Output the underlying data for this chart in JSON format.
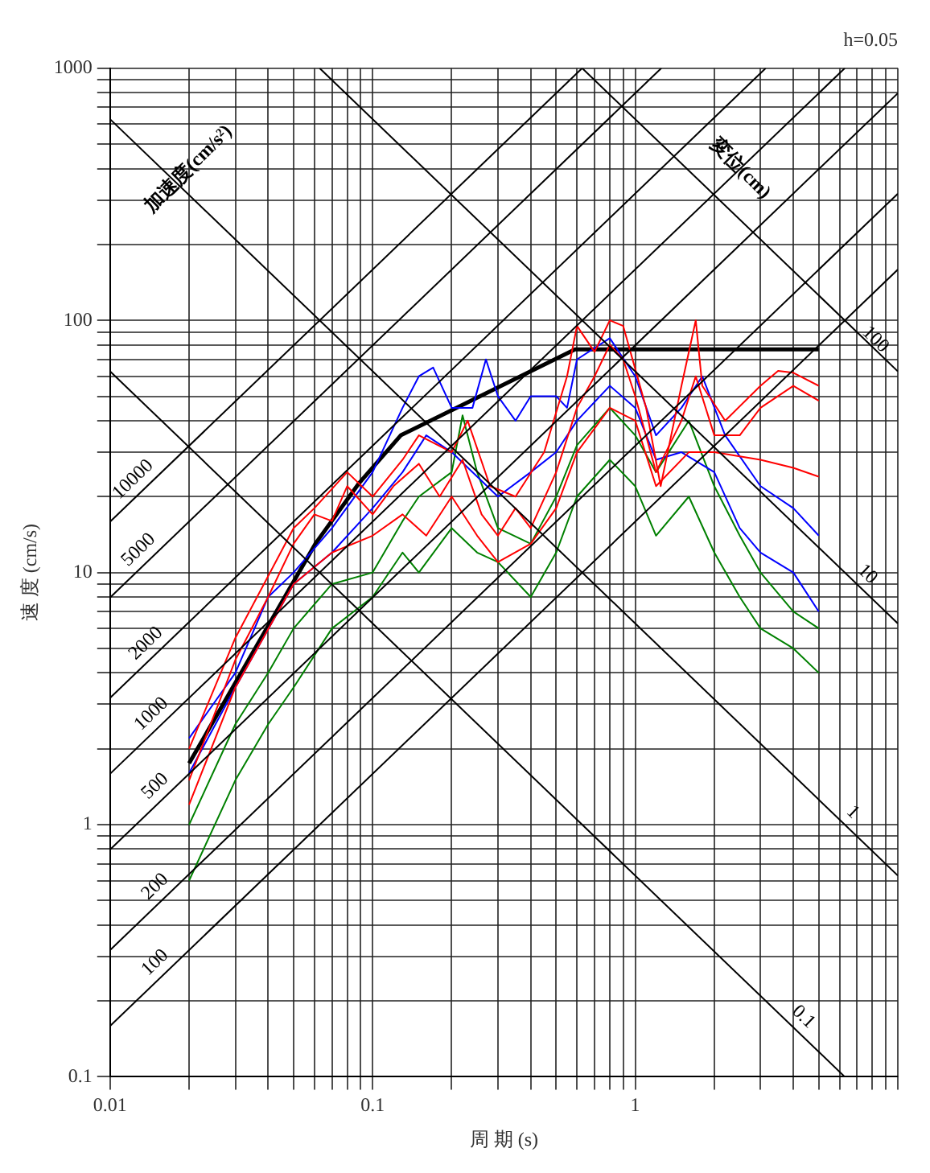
{
  "chart_data": {
    "type": "line",
    "title": "h=0.05",
    "xlabel": "周 期 (s)",
    "ylabel": "速 度 (cm/s)",
    "log": "xy",
    "grid": true,
    "legend": false,
    "marker": "none",
    "xlim": [
      0.01,
      10
    ],
    "ylim": [
      0.1,
      1000
    ],
    "xticks": [
      0.01,
      {
        "value": 0.02,
        "label": null
      },
      {
        "value": 0.03,
        "label": null
      },
      {
        "value": 0.04,
        "label": null
      },
      {
        "value": 0.05,
        "label": null
      },
      {
        "value": 0.06,
        "label": null
      },
      {
        "value": 0.07,
        "label": null
      },
      {
        "value": 0.08,
        "label": null
      },
      {
        "value": 0.09,
        "label": null
      },
      0.1,
      {
        "value": 0.2,
        "label": null
      },
      {
        "value": 0.3,
        "label": null
      },
      {
        "value": 0.4,
        "label": null
      },
      {
        "value": 0.5,
        "label": null
      },
      {
        "value": 0.6,
        "label": null
      },
      {
        "value": 0.7,
        "label": null
      },
      {
        "value": 0.8,
        "label": null
      },
      {
        "value": 0.9,
        "label": null
      },
      1,
      {
        "value": 2,
        "label": null
      },
      {
        "value": 3,
        "label": null
      },
      {
        "value": 4,
        "label": null
      },
      {
        "value": 5,
        "label": null
      },
      {
        "value": 6,
        "label": null
      },
      {
        "value": 7,
        "label": null
      },
      {
        "value": 8,
        "label": null
      },
      {
        "value": 9,
        "label": null
      },
      {
        "value": 10,
        "label": null
      }
    ],
    "yticks": [
      0.1,
      {
        "value": 0.2,
        "label": null
      },
      {
        "value": 0.3,
        "label": null
      },
      {
        "value": 0.4,
        "label": null
      },
      {
        "value": 0.5,
        "label": null
      },
      {
        "value": 0.6,
        "label": null
      },
      {
        "value": 0.7,
        "label": null
      },
      {
        "value": 0.8,
        "label": null
      },
      {
        "value": 0.9,
        "label": null
      },
      1,
      {
        "value": 2,
        "label": null
      },
      {
        "value": 3,
        "label": null
      },
      {
        "value": 4,
        "label": null
      },
      {
        "value": 5,
        "label": null
      },
      {
        "value": 6,
        "label": null
      },
      {
        "value": 7,
        "label": null
      },
      {
        "value": 8,
        "label": null
      },
      {
        "value": 9,
        "label": null
      },
      10,
      {
        "value": 20,
        "label": null
      },
      {
        "value": 30,
        "label": null
      },
      {
        "value": 40,
        "label": null
      },
      {
        "value": 50,
        "label": null
      },
      {
        "value": 60,
        "label": null
      },
      {
        "value": 70,
        "label": null
      },
      {
        "value": 80,
        "label": null
      },
      {
        "value": 90,
        "label": null
      },
      100,
      {
        "value": 200,
        "label": null
      },
      {
        "value": 300,
        "label": null
      },
      {
        "value": 400,
        "label": null
      },
      {
        "value": 500,
        "label": null
      },
      {
        "value": 600,
        "label": null
      },
      {
        "value": 700,
        "label": null
      },
      {
        "value": 800,
        "label": null
      },
      {
        "value": 900,
        "label": null
      },
      1000
    ],
    "annotations": [
      "加速度(cm/s²)",
      "変位(cm)"
    ],
    "series": [
      {
        "name": "100",
        "color": "#000000",
        "x": [
          0.01,
          10
        ],
        "values": [
          0.159,
          159
        ]
      },
      {
        "name": "200",
        "color": "#000000",
        "x": [
          0.01,
          10
        ],
        "values": [
          0.318,
          318
        ]
      },
      {
        "name": "500",
        "color": "#000000",
        "x": [
          0.01,
          10
        ],
        "values": [
          0.796,
          796
        ]
      },
      {
        "name": "1000",
        "color": "#000000",
        "x": [
          0.01,
          6.28
        ],
        "values": [
          1.59,
          1000
        ]
      },
      {
        "name": "2000",
        "color": "#000000",
        "x": [
          0.01,
          3.14
        ],
        "values": [
          3.18,
          1000
        ]
      },
      {
        "name": "5000",
        "color": "#000000",
        "x": [
          0.01,
          1.257
        ],
        "values": [
          7.96,
          1000
        ]
      },
      {
        "name": "10000",
        "color": "#000000",
        "x": [
          0.01,
          0.628
        ],
        "values": [
          15.9,
          1000
        ]
      },
      {
        "name": "0.1",
        "color": "#000000",
        "x": [
          0.01,
          6.28
        ],
        "values": [
          62.8,
          0.1
        ]
      },
      {
        "name": "1",
        "color": "#000000",
        "x": [
          0.01,
          10
        ],
        "values": [
          628,
          0.628
        ]
      },
      {
        "name": "10",
        "color": "#000000",
        "x": [
          0.0628,
          10
        ],
        "values": [
          1000,
          6.28
        ]
      },
      {
        "name": "100",
        "color": "#000000",
        "x": [
          0.628,
          10
        ],
        "values": [
          1000,
          62.8
        ]
      },
      {
        "color": "#ff0000",
        "x": [
          0.02,
          0.03,
          0.04,
          0.05,
          0.06,
          0.07,
          0.08,
          0.1,
          0.12,
          0.15,
          0.18,
          0.22,
          0.26,
          0.3,
          0.35,
          0.4,
          0.5,
          0.6,
          0.7,
          0.8,
          0.9,
          1.0,
          1.2,
          1.5,
          1.7,
          2.0,
          2.5,
          3,
          4,
          5
        ],
        "values": [
          1.5,
          4.5,
          8,
          13,
          17,
          16,
          22,
          17,
          22,
          27,
          20,
          28,
          17,
          14,
          18,
          15,
          25,
          45,
          60,
          80,
          70,
          50,
          25,
          40,
          60,
          35,
          35,
          45,
          55,
          48
        ]
      },
      {
        "color": "#ff0000",
        "x": [
          0.02,
          0.03,
          0.05,
          0.06,
          0.08,
          0.1,
          0.13,
          0.15,
          0.2,
          0.23,
          0.28,
          0.35,
          0.45,
          0.55,
          0.6,
          0.7,
          0.8,
          0.9,
          1.1,
          1.25,
          1.5,
          1.7,
          1.8,
          2.2,
          3,
          3.5,
          4,
          5
        ],
        "values": [
          2.0,
          5.5,
          15,
          18,
          25,
          20,
          28,
          35,
          30,
          40,
          22,
          20,
          30,
          60,
          95,
          75,
          100,
          95,
          45,
          22,
          55,
          100,
          55,
          40,
          55,
          63,
          62,
          55
        ]
      },
      {
        "color": "#ff0000",
        "x": [
          0.02,
          0.03,
          0.05,
          0.07,
          0.1,
          0.13,
          0.16,
          0.2,
          0.25,
          0.3,
          0.4,
          0.5,
          0.6,
          0.8,
          1.0,
          1.2,
          1.6,
          2,
          3,
          4,
          5
        ],
        "values": [
          1.2,
          3.5,
          9,
          12,
          14,
          17,
          14,
          20,
          14,
          11,
          13,
          18,
          30,
          45,
          40,
          22,
          30,
          30,
          28,
          26,
          24
        ]
      },
      {
        "color": "#0000ff",
        "x": [
          0.02,
          0.03,
          0.04,
          0.05,
          0.07,
          0.1,
          0.13,
          0.15,
          0.17,
          0.2,
          0.24,
          0.27,
          0.3,
          0.35,
          0.4,
          0.5,
          0.55,
          0.6,
          0.8,
          1.0,
          1.2,
          1.5,
          1.8,
          2.2,
          3,
          4,
          5
        ],
        "values": [
          2.2,
          4,
          8,
          10,
          15,
          25,
          45,
          60,
          65,
          45,
          45,
          70,
          50,
          40,
          50,
          50,
          45,
          70,
          85,
          60,
          35,
          45,
          60,
          35,
          22,
          18,
          14
        ]
      },
      {
        "color": "#0000ff",
        "x": [
          0.02,
          0.03,
          0.05,
          0.07,
          0.1,
          0.13,
          0.16,
          0.2,
          0.3,
          0.4,
          0.5,
          0.6,
          0.8,
          1.0,
          1.2,
          1.5,
          2,
          2.5,
          3,
          4,
          5
        ],
        "values": [
          1.6,
          3.5,
          9,
          12,
          18,
          25,
          35,
          30,
          20,
          25,
          30,
          40,
          55,
          45,
          28,
          30,
          25,
          15,
          12,
          10,
          7
        ]
      },
      {
        "color": "#008000",
        "x": [
          0.02,
          0.03,
          0.04,
          0.05,
          0.07,
          0.1,
          0.13,
          0.15,
          0.2,
          0.22,
          0.25,
          0.3,
          0.4,
          0.5,
          0.6,
          0.8,
          1.0,
          1.2,
          1.6,
          2,
          2.5,
          3,
          4,
          5
        ],
        "values": [
          1.0,
          2.5,
          4,
          6,
          9,
          10,
          16,
          20,
          25,
          42,
          25,
          15,
          13,
          20,
          32,
          45,
          35,
          25,
          40,
          22,
          14,
          10,
          7,
          6
        ]
      },
      {
        "color": "#008000",
        "x": [
          0.02,
          0.03,
          0.04,
          0.05,
          0.07,
          0.1,
          0.13,
          0.15,
          0.2,
          0.25,
          0.3,
          0.4,
          0.5,
          0.6,
          0.8,
          1.0,
          1.2,
          1.6,
          2,
          2.5,
          3,
          4,
          5
        ],
        "values": [
          0.6,
          1.5,
          2.5,
          3.5,
          6,
          8,
          12,
          10,
          15,
          12,
          11,
          8,
          12,
          20,
          28,
          22,
          14,
          20,
          12,
          8,
          6,
          5,
          4
        ]
      },
      {
        "color": "#000000",
        "x": [
          0.02,
          0.0605,
          0.089,
          0.128,
          0.59,
          5
        ],
        "values": [
          1.75,
          13,
          22.7,
          35,
          76.7,
          76.7
        ]
      }
    ]
  }
}
